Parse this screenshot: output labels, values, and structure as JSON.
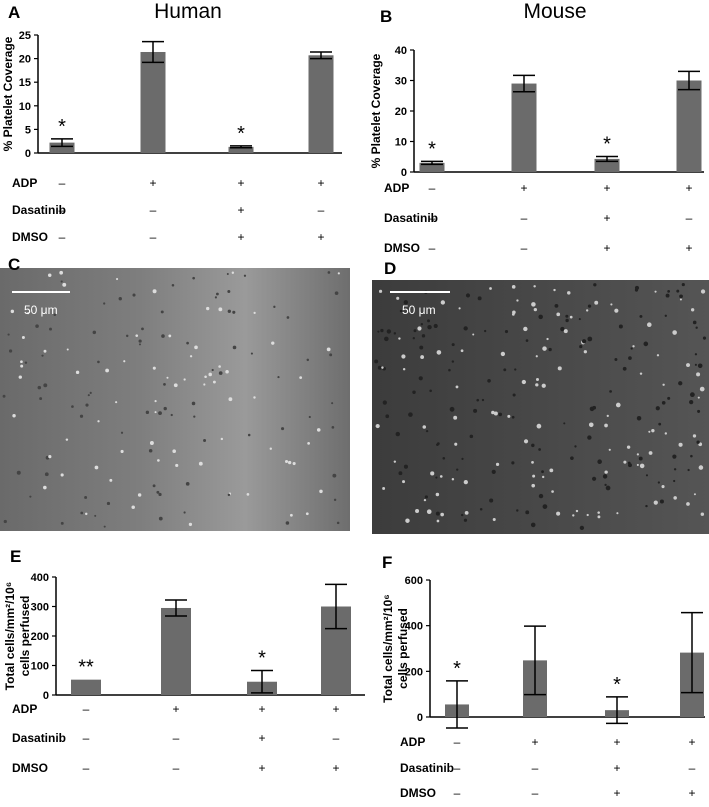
{
  "chart_data": [
    {
      "type": "bar",
      "panel": "A",
      "title": "Human",
      "ylabel": [
        "% Platelet Coverage"
      ],
      "categories": [
        null,
        null,
        null,
        null
      ],
      "values": [
        2.2,
        21.4,
        1.3,
        20.7
      ],
      "errors": [
        0.8,
        2.2,
        0.2,
        0.7
      ],
      "annotations": [
        "*",
        null,
        "*",
        null
      ],
      "color": "#6b6b6b",
      "ylim": [
        0,
        25
      ],
      "yticks": [
        0,
        5,
        10,
        15,
        20,
        25
      ],
      "conditions": [
        {
          "name": "ADP",
          "values": [
            "–",
            "+",
            "+",
            "+"
          ]
        },
        {
          "name": "Dasatinib",
          "values": [
            "–",
            "–",
            "+",
            "–"
          ]
        },
        {
          "name": "DMSO",
          "values": [
            "–",
            "–",
            "+",
            "+"
          ]
        }
      ]
    },
    {
      "type": "bar",
      "panel": "B",
      "title": "Mouse",
      "ylabel": [
        "% Platelet Coverage"
      ],
      "categories": [
        null,
        null,
        null,
        null
      ],
      "values": [
        3,
        29,
        4.3,
        30
      ],
      "errors": [
        0.5,
        2.7,
        0.8,
        3
      ],
      "annotations": [
        "*",
        null,
        "*",
        null
      ],
      "color": "#6b6b6b",
      "ylim": [
        0,
        40
      ],
      "yticks": [
        0,
        10,
        20,
        30,
        40
      ],
      "conditions": [
        {
          "name": "ADP",
          "values": [
            "–",
            "+",
            "+",
            "+"
          ]
        },
        {
          "name": "Dasatinib",
          "values": [
            "–",
            "–",
            "+",
            "–"
          ]
        },
        {
          "name": "DMSO",
          "values": [
            "–",
            "–",
            "+",
            "+"
          ]
        }
      ]
    },
    {
      "type": "bar",
      "panel": "E",
      "ylabel": [
        "Total cells/mm²/10⁶",
        "cells perfused"
      ],
      "categories": [
        null,
        null,
        null,
        null
      ],
      "values": [
        52,
        295,
        45,
        300
      ],
      "errors": [
        null,
        27,
        38,
        75
      ],
      "annotations": [
        "**",
        null,
        "*",
        null
      ],
      "color": "#6b6b6b",
      "ylim": [
        0,
        400
      ],
      "yticks": [
        0,
        100,
        200,
        300,
        400
      ],
      "conditions": [
        {
          "name": "ADP",
          "values": [
            "–",
            "+",
            "+",
            "+"
          ]
        },
        {
          "name": "Dasatinib",
          "values": [
            "–",
            "–",
            "+",
            "–"
          ]
        },
        {
          "name": "DMSO",
          "values": [
            "–",
            "–",
            "+",
            "+"
          ]
        }
      ]
    },
    {
      "type": "bar",
      "panel": "F",
      "ylabel": [
        "Total cells/mm²/10⁶",
        "cells perfused"
      ],
      "categories": [
        null,
        null,
        null,
        null
      ],
      "values": [
        55,
        248,
        30,
        282
      ],
      "errors": [
        103,
        150,
        58,
        175
      ],
      "annotations": [
        "*",
        null,
        "*",
        null
      ],
      "color": "#6b6b6b",
      "ylim": [
        0,
        600
      ],
      "yticks": [
        0,
        200,
        400,
        600
      ],
      "conditions": [
        {
          "name": "ADP",
          "values": [
            "–",
            "+",
            "+",
            "+"
          ]
        },
        {
          "name": "Dasatinib",
          "values": [
            "–",
            "–",
            "+",
            "–"
          ]
        },
        {
          "name": "DMSO",
          "values": [
            "–",
            "–",
            "+",
            "+"
          ]
        }
      ]
    }
  ],
  "images": [
    {
      "panel": "C",
      "scale_bar": "50 μm"
    },
    {
      "panel": "D",
      "scale_bar": "50 μm"
    }
  ]
}
